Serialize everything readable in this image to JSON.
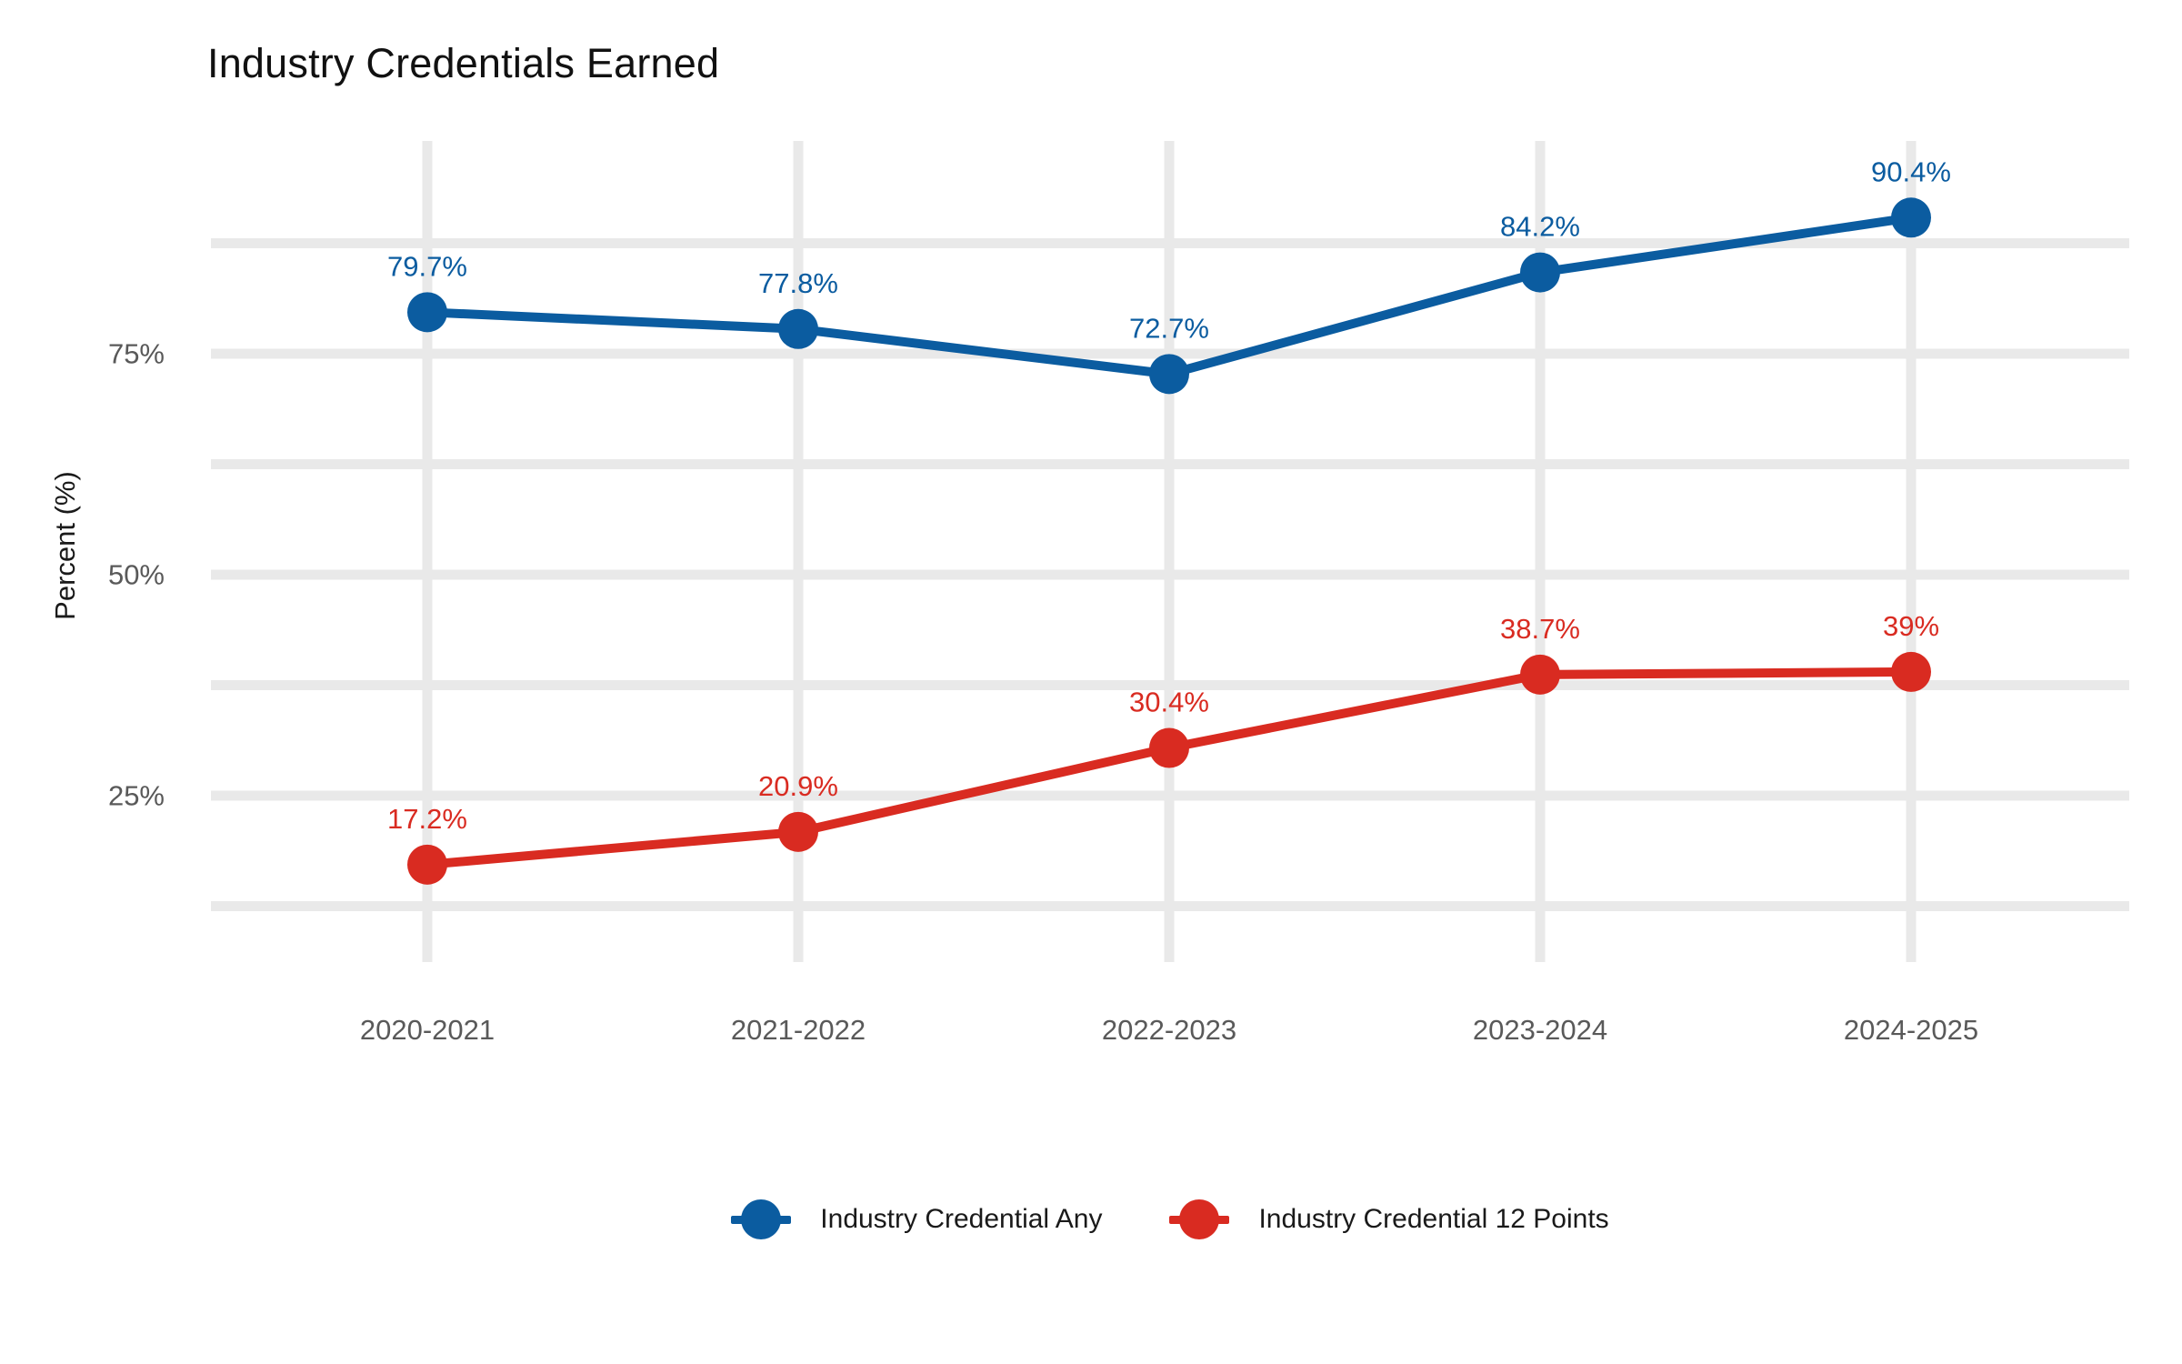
{
  "chart_data": {
    "type": "line",
    "title": "Industry Credentials Earned",
    "xlabel": "",
    "ylabel": "Percent (%)",
    "categories": [
      "2020-2021",
      "2021-2022",
      "2022-2023",
      "2023-2024",
      "2024-2025"
    ],
    "series": [
      {
        "name": "Industry Credential Any",
        "color": "#0B5CA0",
        "values": [
          79.7,
          77.8,
          72.7,
          84.2,
          90.4
        ],
        "labels": [
          "79.7%",
          "77.8%",
          "72.7%",
          "84.2%",
          "90.4%"
        ]
      },
      {
        "name": "Industry Credential 12 Points",
        "color": "#D92B21",
        "values": [
          17.2,
          20.9,
          30.4,
          38.7,
          39
        ],
        "labels": [
          "17.2%",
          "20.9%",
          "30.4%",
          "38.7%",
          "39%"
        ]
      }
    ],
    "y_ticks": [
      {
        "value": 25,
        "label": "25%"
      },
      {
        "value": 50,
        "label": "50%"
      },
      {
        "value": 75,
        "label": "75%"
      }
    ],
    "y_minor_gridlines": [
      12.5,
      37.5,
      62.5,
      87.5
    ],
    "ylim": [
      7.5,
      99
    ],
    "grid": true,
    "legend_position": "bottom",
    "colors": {
      "gridline": "#E9E9E9",
      "tick_label": "#595959",
      "title_text": "#111111",
      "background": "#FFFFFF"
    }
  }
}
